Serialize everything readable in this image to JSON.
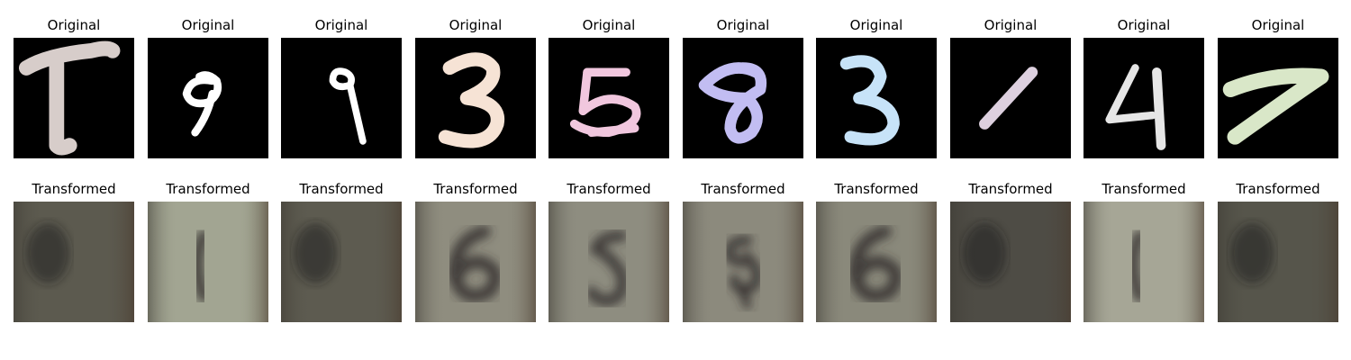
{
  "row_labels": {
    "top": "Original",
    "bottom": "Transformed"
  },
  "originals": [
    {
      "digit": "7",
      "stroke_color": "#d7cdca"
    },
    {
      "digit": "9",
      "stroke_color": "#ffffff"
    },
    {
      "digit": "9",
      "stroke_color": "#ffffff"
    },
    {
      "digit": "3",
      "stroke_color": "#f6e3d5"
    },
    {
      "digit": "5",
      "stroke_color": "#f1c7de"
    },
    {
      "digit": "8",
      "stroke_color": "#c2bdf2"
    },
    {
      "digit": "3",
      "stroke_color": "#c7e3f8"
    },
    {
      "digit": "1",
      "stroke_color": "#ddd0df"
    },
    {
      "digit": "4",
      "stroke_color": "#e6e6e6"
    },
    {
      "digit": "7",
      "stroke_color": "#d9e7c8"
    }
  ],
  "transformed": [
    {
      "stroke": "none",
      "bg_color": "#5c5a4f"
    },
    {
      "stroke": "blur",
      "bg_color": "#a2a592"
    },
    {
      "stroke": "none",
      "bg_color": "#5d5b50"
    },
    {
      "stroke": "6",
      "bg_color": "#8f8d7f"
    },
    {
      "stroke": "5",
      "bg_color": "#8e8d80"
    },
    {
      "stroke": "8",
      "bg_color": "#8c8a7d"
    },
    {
      "stroke": "6",
      "bg_color": "#8a897b"
    },
    {
      "stroke": "none",
      "bg_color": "#4e4c45"
    },
    {
      "stroke": "blur",
      "bg_color": "#a6a696"
    },
    {
      "stroke": "none",
      "bg_color": "#56554b"
    }
  ]
}
